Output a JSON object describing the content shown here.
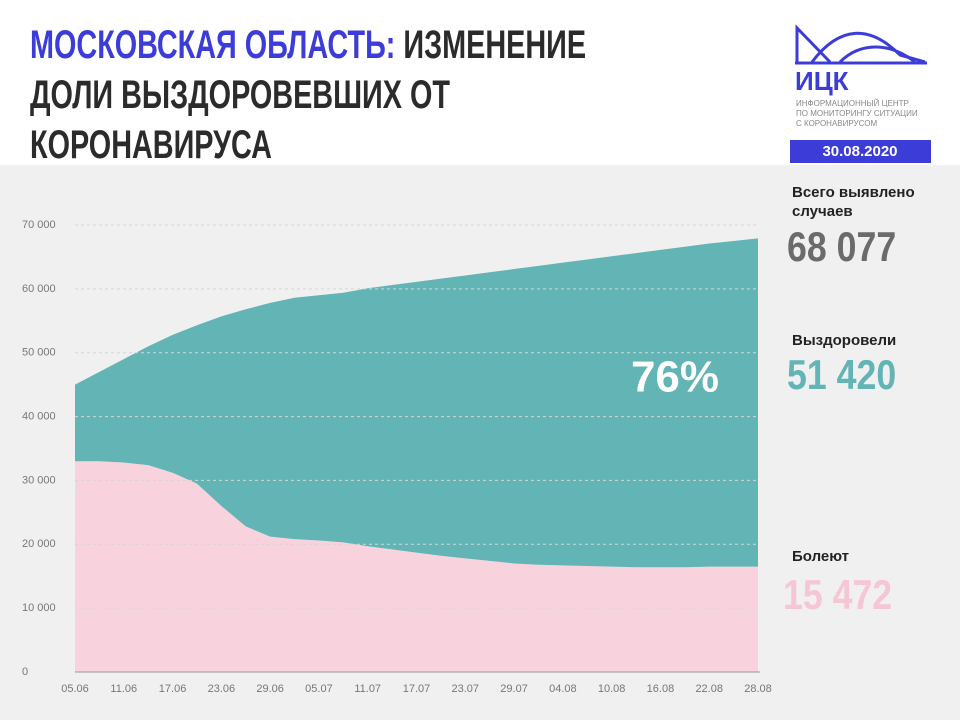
{
  "header": {
    "region": "МОСКОВСКАЯ ОБЛАСТЬ:",
    "title": "ИЗМЕНЕНИЕ ДОЛИ ВЫЗДОРОВЕВШИХ ОТ КОРОНАВИРУСА"
  },
  "logo": {
    "name": "ИЦК",
    "subtitle": [
      "ИНФОРМАЦИОННЫЙ ЦЕНТР",
      "ПО МОНИТОРИНГУ СИТУАЦИИ",
      "С КОРОНАВИРУСОМ"
    ],
    "date": "30.08.2020"
  },
  "side_panel": {
    "total_label": "Всего выявлено случаев",
    "total": "68 077",
    "recovered": "51 420",
    "sick": "15 472"
  },
  "chart_data": {
    "type": "stacked_area",
    "annotation": "76%",
    "categories": [
      "05.06",
      null,
      "11.06",
      null,
      "17.06",
      null,
      "23.06",
      null,
      "29.06",
      null,
      "05.07",
      null,
      "11.07",
      null,
      "17.07",
      null,
      "23.07",
      null,
      "29.07",
      null,
      "04.08",
      null,
      "10.08",
      null,
      "16.08",
      null,
      "22.08",
      null,
      "28.08"
    ],
    "series": [
      {
        "name": "Болеют",
        "color": "#f8d3de",
        "values": [
          33000,
          33000,
          32800,
          32400,
          31200,
          29500,
          26000,
          22800,
          21200,
          20800,
          20600,
          20300,
          19700,
          19200,
          18700,
          18200,
          17800,
          17400,
          17000,
          16800,
          16700,
          16600,
          16500,
          16400,
          16400,
          16400,
          16500,
          16500,
          16500
        ]
      },
      {
        "name": "Выздоровели",
        "color": "#62b4b5",
        "values": [
          12000,
          14000,
          16200,
          18600,
          21600,
          24800,
          29700,
          34000,
          36600,
          37800,
          38400,
          39100,
          40400,
          41400,
          42400,
          43400,
          44300,
          45200,
          46100,
          46800,
          47400,
          48000,
          48600,
          49200,
          49700,
          50200,
          50600,
          51000,
          51400
        ]
      }
    ],
    "ylim": [
      0,
      70000
    ],
    "yticks": [
      0,
      {
        "value": 10000,
        "label": "10 000"
      },
      {
        "value": 20000,
        "label": "20 000"
      },
      {
        "value": 30000,
        "label": "30 000"
      },
      {
        "value": 40000,
        "label": "40 000"
      },
      {
        "value": 50000,
        "label": "50 000"
      },
      {
        "value": 60000,
        "label": "60 000"
      },
      {
        "value": 70000,
        "label": "70 000"
      }
    ],
    "grid": true
  }
}
